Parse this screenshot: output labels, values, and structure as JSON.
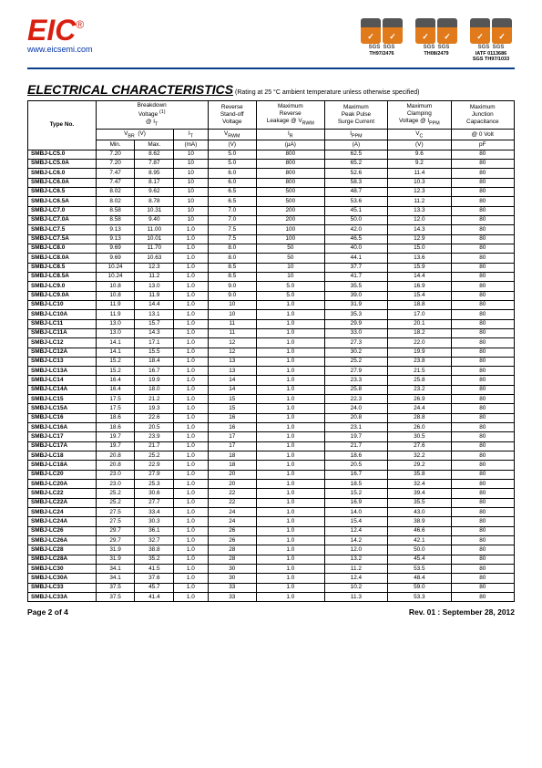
{
  "header": {
    "logo_text": "EIC",
    "website": "www.eicsemi.com",
    "certs": [
      {
        "label": "TH97/2476"
      },
      {
        "label": "TH08/2479"
      },
      {
        "label": "IATF 0113686\nSGS TH97/1033"
      }
    ]
  },
  "title": "ELECTRICAL CHARACTERISTICS",
  "title_note": "(Rating at 25 °C ambient temperature unless otherwise specified)",
  "table": {
    "head_row1": [
      "Type No.",
      "Breakdown\nVoltage (1)\n@ IT",
      "Reverse\nStand-off\nVoltage",
      "Maximum\nReverse\nLeakage @ VRWM",
      "Maximum\nPeak Pulse\nSurge Current",
      "Maximum\nClamping\nVoltage @ IPPM",
      "Maximum\nJunction\nCapacitance"
    ],
    "head_row2": [
      "VBR  (V)",
      "IT",
      "VRWM",
      "IR",
      "IPPM",
      "VC",
      "@ 0 Volt"
    ],
    "head_row3": [
      "Min.",
      "Max.",
      "(mA)",
      "(V)",
      "(µA)",
      "(A)",
      "(V)",
      "pF"
    ],
    "rows": [
      [
        "SMBJ-LC5.0",
        "7.20",
        "8.62",
        "10",
        "5.0",
        "800",
        "62.5",
        "9.6",
        "80"
      ],
      [
        "SMBJ-LC5.0A",
        "7.20",
        "7.87",
        "10",
        "5.0",
        "800",
        "65.2",
        "9.2",
        "80"
      ],
      [
        "SMBJ-LC6.0",
        "7.47",
        "8.95",
        "10",
        "6.0",
        "800",
        "52.6",
        "11.4",
        "80"
      ],
      [
        "SMBJ-LC6.0A",
        "7.47",
        "8.17",
        "10",
        "6.0",
        "800",
        "58.3",
        "10.3",
        "80"
      ],
      [
        "SMBJ-LC6.5",
        "8.02",
        "9.62",
        "10",
        "6.5",
        "500",
        "48.7",
        "12.3",
        "80"
      ],
      [
        "SMBJ-LC6.5A",
        "8.02",
        "8.78",
        "10",
        "6.5",
        "500",
        "53.6",
        "11.2",
        "80"
      ],
      [
        "SMBJ-LC7.0",
        "8.58",
        "10.31",
        "10",
        "7.0",
        "200",
        "45.1",
        "13.3",
        "80"
      ],
      [
        "SMBJ-LC7.0A",
        "8.58",
        "9.40",
        "10",
        "7.0",
        "200",
        "50.0",
        "12.0",
        "80"
      ],
      [
        "SMBJ-LC7.5",
        "9.13",
        "11.00",
        "1.0",
        "7.5",
        "100",
        "42.0",
        "14.3",
        "80"
      ],
      [
        "SMBJ-LC7.5A",
        "9.13",
        "10.01",
        "1.0",
        "7.5",
        "100",
        "46.5",
        "12.9",
        "80"
      ],
      [
        "SMBJ-LC8.0",
        "9.69",
        "11.70",
        "1.0",
        "8.0",
        "50",
        "40.0",
        "15.0",
        "80"
      ],
      [
        "SMBJ-LC8.0A",
        "9.69",
        "10.63",
        "1.0",
        "8.0",
        "50",
        "44.1",
        "13.6",
        "80"
      ],
      [
        "SMBJ-LC8.5",
        "10.24",
        "12.3",
        "1.0",
        "8.5",
        "10",
        "37.7",
        "15.9",
        "80"
      ],
      [
        "SMBJ-LC8.5A",
        "10.24",
        "11.2",
        "1.0",
        "8.5",
        "10",
        "41.7",
        "14.4",
        "80"
      ],
      [
        "SMBJ-LC9.0",
        "10.8",
        "13.0",
        "1.0",
        "9.0",
        "5.0",
        "35.5",
        "16.9",
        "80"
      ],
      [
        "SMBJ-LC9.0A",
        "10.8",
        "11.9",
        "1.0",
        "9.0",
        "5.0",
        "39.0",
        "15.4",
        "80"
      ],
      [
        "SMBJ-LC10",
        "11.9",
        "14.4",
        "1.0",
        "10",
        "1.0",
        "31.9",
        "18.8",
        "80"
      ],
      [
        "SMBJ-LC10A",
        "11.9",
        "13.1",
        "1.0",
        "10",
        "1.0",
        "35.3",
        "17.0",
        "80"
      ],
      [
        "SMBJ-LC11",
        "13.0",
        "15.7",
        "1.0",
        "11",
        "1.0",
        "29.9",
        "20.1",
        "80"
      ],
      [
        "SMBJ-LC11A",
        "13.0",
        "14.3",
        "1.0",
        "11",
        "1.0",
        "33.0",
        "18.2",
        "80"
      ],
      [
        "SMBJ-LC12",
        "14.1",
        "17.1",
        "1.0",
        "12",
        "1.0",
        "27.3",
        "22.0",
        "80"
      ],
      [
        "SMBJ-LC12A",
        "14.1",
        "15.5",
        "1.0",
        "12",
        "1.0",
        "30.2",
        "19.9",
        "80"
      ],
      [
        "SMBJ-LC13",
        "15.2",
        "18.4",
        "1.0",
        "13",
        "1.0",
        "25.2",
        "23.8",
        "80"
      ],
      [
        "SMBJ-LC13A",
        "15.2",
        "16.7",
        "1.0",
        "13",
        "1.0",
        "27.9",
        "21.5",
        "80"
      ],
      [
        "SMBJ-LC14",
        "16.4",
        "19.9",
        "1.0",
        "14",
        "1.0",
        "23.3",
        "25.8",
        "80"
      ],
      [
        "SMBJ-LC14A",
        "16.4",
        "18.0",
        "1.0",
        "14",
        "1.0",
        "25.8",
        "23.2",
        "80"
      ],
      [
        "SMBJ-LC15",
        "17.5",
        "21.2",
        "1.0",
        "15",
        "1.0",
        "22.3",
        "26.9",
        "80"
      ],
      [
        "SMBJ-LC15A",
        "17.5",
        "19.3",
        "1.0",
        "15",
        "1.0",
        "24.0",
        "24.4",
        "80"
      ],
      [
        "SMBJ-LC16",
        "18.6",
        "22.6",
        "1.0",
        "16",
        "1.0",
        "20.8",
        "28.8",
        "80"
      ],
      [
        "SMBJ-LC16A",
        "18.6",
        "20.5",
        "1.0",
        "16",
        "1.0",
        "23.1",
        "26.0",
        "80"
      ],
      [
        "SMBJ-LC17",
        "19.7",
        "23.9",
        "1.0",
        "17",
        "1.0",
        "19.7",
        "30.5",
        "80"
      ],
      [
        "SMBJ-LC17A",
        "19.7",
        "21.7",
        "1.0",
        "17",
        "1.0",
        "21.7",
        "27.6",
        "80"
      ],
      [
        "SMBJ-LC18",
        "20.8",
        "25.2",
        "1.0",
        "18",
        "1.0",
        "18.6",
        "32.2",
        "80"
      ],
      [
        "SMBJ-LC18A",
        "20.8",
        "22.9",
        "1.0",
        "18",
        "1.0",
        "20.5",
        "29.2",
        "80"
      ],
      [
        "SMBJ-LC20",
        "23.0",
        "27.9",
        "1.0",
        "20",
        "1.0",
        "16.7",
        "35.8",
        "80"
      ],
      [
        "SMBJ-LC20A",
        "23.0",
        "25.3",
        "1.0",
        "20",
        "1.0",
        "18.5",
        "32.4",
        "80"
      ],
      [
        "SMBJ-LC22",
        "25.2",
        "30.6",
        "1.0",
        "22",
        "1.0",
        "15.2",
        "39.4",
        "80"
      ],
      [
        "SMBJ-LC22A",
        "25.2",
        "27.7",
        "1.0",
        "22",
        "1.0",
        "16.9",
        "35.5",
        "80"
      ],
      [
        "SMBJ-LC24",
        "27.5",
        "33.4",
        "1.0",
        "24",
        "1.0",
        "14.0",
        "43.0",
        "80"
      ],
      [
        "SMBJ-LC24A",
        "27.5",
        "30.3",
        "1.0",
        "24",
        "1.0",
        "15.4",
        "38.9",
        "80"
      ],
      [
        "SMBJ-LC26",
        "29.7",
        "36.1",
        "1.0",
        "26",
        "1.0",
        "12.4",
        "46.6",
        "80"
      ],
      [
        "SMBJ-LC26A",
        "29.7",
        "32.7",
        "1.0",
        "26",
        "1.0",
        "14.2",
        "42.1",
        "80"
      ],
      [
        "SMBJ-LC28",
        "31.9",
        "38.8",
        "1.0",
        "28",
        "1.0",
        "12.0",
        "50.0",
        "80"
      ],
      [
        "SMBJ-LC28A",
        "31.9",
        "35.2",
        "1.0",
        "28",
        "1.0",
        "13.2",
        "45.4",
        "80"
      ],
      [
        "SMBJ-LC30",
        "34.1",
        "41.5",
        "1.0",
        "30",
        "1.0",
        "11.2",
        "53.5",
        "80"
      ],
      [
        "SMBJ-LC30A",
        "34.1",
        "37.6",
        "1.0",
        "30",
        "1.0",
        "12.4",
        "48.4",
        "80"
      ],
      [
        "SMBJ-LC33",
        "37.5",
        "45.7",
        "1.0",
        "33",
        "1.0",
        "10.2",
        "59.0",
        "80"
      ],
      [
        "SMBJ-LC33A",
        "37.5",
        "41.4",
        "1.0",
        "33",
        "1.0",
        "11.3",
        "53.3",
        "80"
      ]
    ]
  },
  "footer": {
    "left": "Page 2 of 4",
    "right": "Rev. 01 : September 28, 2012"
  },
  "colors": {
    "accent_red": "#d92010",
    "accent_blue": "#0a3f8a",
    "link_blue": "#0033aa"
  }
}
